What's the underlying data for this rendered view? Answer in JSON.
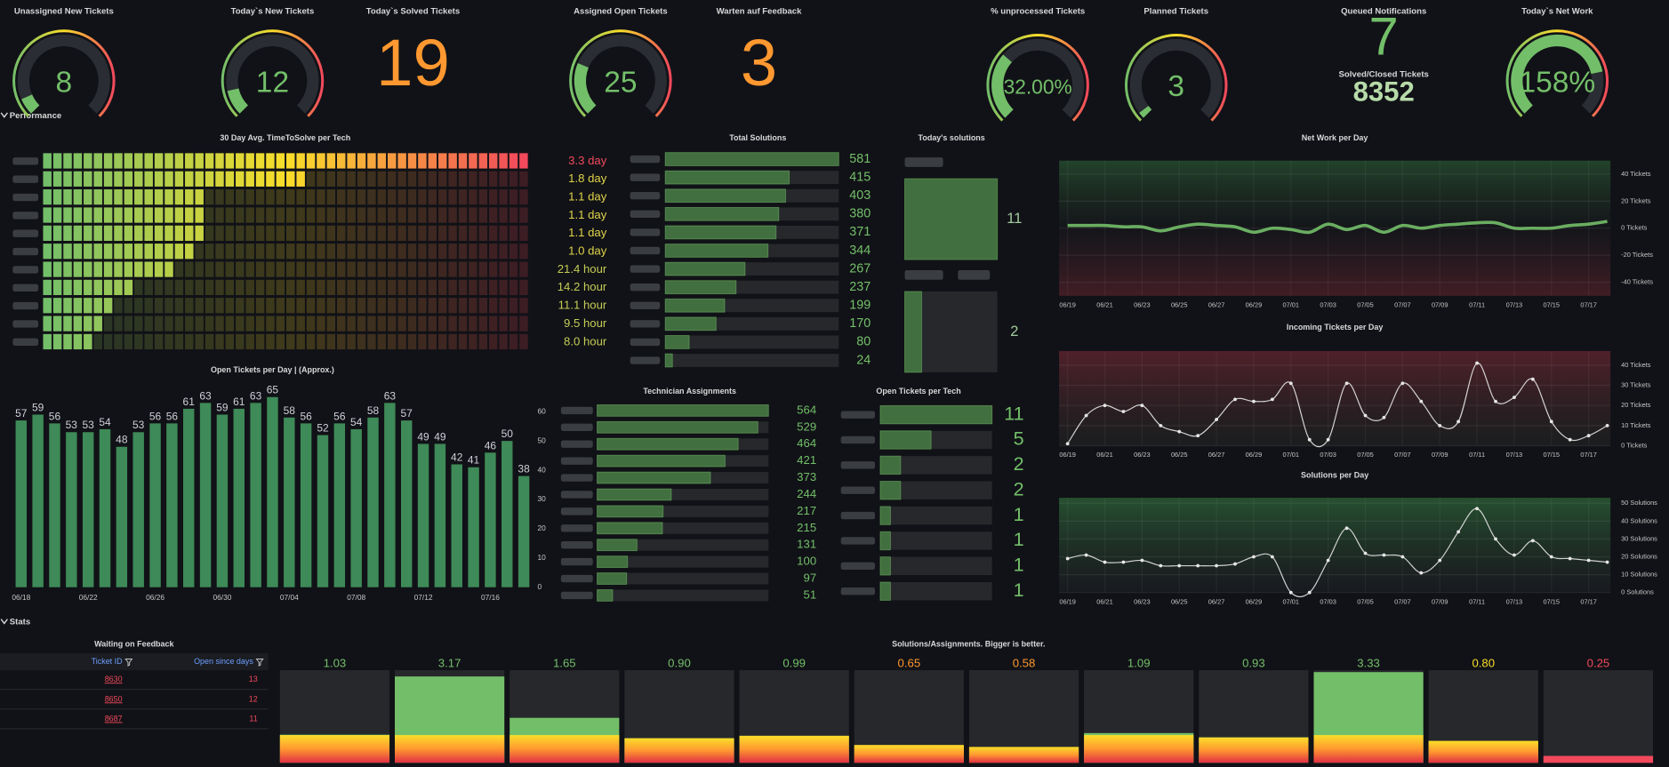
{
  "stats": [
    {
      "title": "Unassigned New Tickets",
      "kind": "gauge",
      "value": 8,
      "range": [
        0,
        100
      ]
    },
    {
      "title": "Today`s New Tickets",
      "kind": "gauge",
      "value": 12,
      "range": [
        0,
        100
      ]
    },
    {
      "title": "Today`s Solved Tickets",
      "kind": "stat",
      "value": 19,
      "color": "#ff9830"
    },
    {
      "title": "Assigned Open Tickets",
      "kind": "gauge",
      "value": 25,
      "range": [
        0,
        100
      ]
    },
    {
      "title": "Warten auf Feedback",
      "kind": "stat",
      "value": 3,
      "color": "#ff9830"
    },
    {
      "title": "% unprocessed Tickets",
      "kind": "gauge",
      "value": 32,
      "value_label": "32.00%",
      "range": [
        0,
        100
      ]
    },
    {
      "title": "Planned Tickets",
      "kind": "gauge",
      "value": 3,
      "range": [
        0,
        100
      ]
    },
    {
      "title": "Queued Notifications",
      "kind": "stat",
      "value": 7,
      "color": "#73bf69"
    },
    {
      "title": "Solved/Closed Tickets",
      "kind": "stat",
      "value": 8352,
      "color": "#b7dba9"
    },
    {
      "title": "Today`s Net Work",
      "kind": "gauge",
      "value": 158,
      "value_label": "158%",
      "range": [
        0,
        200
      ]
    }
  ],
  "sections": [
    "Performance",
    "Stats"
  ],
  "charts": [
    {
      "type": "lcd",
      "title": "30 Day Avg. TimeToSolve per Tech",
      "values": [
        79.2,
        43.2,
        26.4,
        26.4,
        26.4,
        24,
        21.4,
        14.2,
        11.1,
        9.5,
        8.0
      ],
      "value_labels": [
        "3.3 day",
        "1.8 day",
        "1.1 day",
        "1.1 day",
        "1.1 day",
        "1.0 day",
        "21.4 hour",
        "14.2 hour",
        "11.1 hour",
        "9.5 hour",
        "8.0 hour"
      ],
      "label_colors": [
        "#f2495c",
        "#e0d44a",
        "#e0d44a",
        "#e0d44a",
        "#e0d44a",
        "#e0d44a",
        "#c4cc55",
        "#c4cc55",
        "#c4cc55",
        "#c4cc55",
        "#c4cc55"
      ],
      "xlim": [
        0,
        79.2
      ]
    },
    {
      "type": "hbar",
      "title": "Total Solutions",
      "values": [
        581,
        415,
        403,
        380,
        371,
        344,
        267,
        237,
        199,
        170,
        80,
        24
      ],
      "xlim": [
        0,
        581
      ],
      "color": "#426f3f"
    },
    {
      "type": "box",
      "title": "Today's solutions",
      "values": [
        11,
        2
      ],
      "xlim": [
        0,
        11
      ],
      "color": "#426f3f"
    },
    {
      "type": "line",
      "title": "Net Work per Day",
      "x": [
        "06/19",
        "06/20",
        "06/21",
        "06/22",
        "06/23",
        "06/24",
        "06/25",
        "06/26",
        "06/27",
        "06/28",
        "06/29",
        "06/30",
        "07/01",
        "07/02",
        "07/03",
        "07/04",
        "07/05",
        "07/06",
        "07/07",
        "07/08",
        "07/09",
        "07/10",
        "07/11",
        "07/12",
        "07/13",
        "07/14",
        "07/15",
        "07/16",
        "07/17",
        "07/18"
      ],
      "values": [
        2,
        2,
        2,
        1,
        1,
        -2,
        1,
        3,
        2,
        1,
        -3,
        0,
        -1,
        -3,
        3,
        -1,
        2,
        -3,
        2,
        0,
        2,
        3,
        4,
        4,
        0,
        0,
        0,
        2,
        3,
        5
      ],
      "color": "#73bf69",
      "ylim": [
        -50,
        50
      ],
      "yticks": [
        {
          "value": 40,
          "label": "40 Tickets"
        },
        {
          "value": 20,
          "label": "20 Tickets"
        },
        {
          "value": 0,
          "label": "0 Tickets"
        },
        {
          "value": -20,
          "label": "-20 Tickets"
        },
        {
          "value": -40,
          "label": "-40 Tickets"
        }
      ],
      "xticks": [
        "06/19",
        "06/21",
        "06/23",
        "06/25",
        "06/27",
        "06/29",
        "07/01",
        "07/03",
        "07/05",
        "07/07",
        "07/09",
        "07/11",
        "07/13",
        "07/15",
        "07/17"
      ]
    },
    {
      "type": "line",
      "title": "Incoming Tickets per Day",
      "x": [
        "06/19",
        "06/20",
        "06/21",
        "06/22",
        "06/23",
        "06/24",
        "06/25",
        "06/26",
        "06/27",
        "06/28",
        "06/29",
        "06/30",
        "07/01",
        "07/02",
        "07/03",
        "07/04",
        "07/05",
        "07/06",
        "07/07",
        "07/08",
        "07/09",
        "07/10",
        "07/11",
        "07/12",
        "07/13",
        "07/14",
        "07/15",
        "07/16",
        "07/17",
        "07/18"
      ],
      "values": [
        1,
        15,
        20,
        17,
        20,
        10,
        7,
        5,
        13,
        23,
        22,
        23,
        31,
        3,
        3,
        31,
        15,
        14,
        31,
        22,
        10,
        12,
        41,
        22,
        24,
        33,
        12,
        3,
        5,
        10
      ],
      "color": "#e6e6e6",
      "ylim": [
        0,
        47
      ],
      "yticks": [
        {
          "value": 40,
          "label": "40 Tickets"
        },
        {
          "value": 30,
          "label": "30 Tickets"
        },
        {
          "value": 20,
          "label": "20 Tickets"
        },
        {
          "value": 10,
          "label": "10 Tickets"
        },
        {
          "value": 0,
          "label": "0 Tickets"
        }
      ],
      "xticks": [
        "06/19",
        "06/21",
        "06/23",
        "06/25",
        "06/27",
        "06/29",
        "07/01",
        "07/03",
        "07/05",
        "07/07",
        "07/09",
        "07/11",
        "07/13",
        "07/15",
        "07/17"
      ]
    },
    {
      "type": "line",
      "title": "Solutions per Day",
      "x": [
        "06/19",
        "06/20",
        "06/21",
        "06/22",
        "06/23",
        "06/24",
        "06/25",
        "06/26",
        "06/27",
        "06/28",
        "06/29",
        "06/30",
        "07/01",
        "07/02",
        "07/03",
        "07/04",
        "07/05",
        "07/06",
        "07/07",
        "07/08",
        "07/09",
        "07/10",
        "07/11",
        "07/12",
        "07/13",
        "07/14",
        "07/15",
        "07/16",
        "07/17",
        "07/18"
      ],
      "values": [
        19,
        21,
        17,
        17,
        18,
        15,
        15,
        15,
        15,
        16,
        20,
        20,
        0,
        0,
        18,
        36,
        22,
        21,
        20,
        11,
        18,
        34,
        47,
        30,
        21,
        29,
        20,
        19,
        18,
        17
      ],
      "color": "#e6e6e6",
      "ylim": [
        0,
        53
      ],
      "yticks": [
        {
          "value": 50,
          "label": "50 Solutions"
        },
        {
          "value": 40,
          "label": "40 Solutions"
        },
        {
          "value": 30,
          "label": "30 Solutions"
        },
        {
          "value": 20,
          "label": "20 Solutions"
        },
        {
          "value": 10,
          "label": "10 Solutions"
        },
        {
          "value": 0,
          "label": "0 Solutions"
        }
      ],
      "xticks": [
        "06/19",
        "06/21",
        "06/23",
        "06/25",
        "06/27",
        "06/29",
        "07/01",
        "07/03",
        "07/05",
        "07/07",
        "07/09",
        "07/11",
        "07/13",
        "07/15",
        "07/17"
      ]
    },
    {
      "type": "bar",
      "title": "Open Tickets per Day | (Approx.)",
      "categories": [
        "06/18",
        null,
        null,
        null,
        "06/22",
        null,
        null,
        null,
        "06/26",
        null,
        null,
        null,
        "06/30",
        null,
        null,
        null,
        "07/04",
        null,
        null,
        null,
        "07/08",
        null,
        null,
        null,
        "07/12",
        null,
        null,
        null,
        "07/16",
        null,
        null
      ],
      "values": [
        57,
        59,
        56,
        53,
        53,
        54,
        48,
        53,
        56,
        56,
        61,
        63,
        59,
        61,
        63,
        65,
        58,
        56,
        52,
        56,
        54,
        58,
        63,
        57,
        49,
        49,
        42,
        41,
        46,
        50,
        38
      ],
      "color": "#3e8a58",
      "ylim": [
        0,
        68
      ],
      "yticks": [
        0,
        10,
        20,
        30,
        40,
        50,
        60
      ]
    },
    {
      "type": "hbar",
      "title": "Technician Assignments",
      "values": [
        564,
        529,
        464,
        421,
        373,
        244,
        217,
        215,
        131,
        100,
        97,
        51
      ],
      "xlim": [
        0,
        564
      ],
      "color": "#426f3f"
    },
    {
      "type": "hbar",
      "title": "Open Tickets per Tech",
      "values": [
        11,
        5,
        2,
        2,
        1,
        1,
        1,
        1
      ],
      "xlim": [
        0,
        11
      ],
      "color": "#426f3f"
    },
    {
      "type": "table",
      "title": "Waiting on Feedback",
      "columns": [
        "Ticket ID",
        "Open since days"
      ],
      "rows": [
        [
          8630,
          13
        ],
        [
          8650,
          12
        ],
        [
          8687,
          11
        ]
      ]
    },
    {
      "type": "statbars",
      "title": "Solutions/Assignments. Bigger is better.",
      "values": [
        1.03,
        3.17,
        1.65,
        0.9,
        0.99,
        0.65,
        0.58,
        1.09,
        0.93,
        3.33,
        0.8,
        0.25
      ],
      "value_labels": [
        "1.03",
        "3.17",
        "1.65",
        "0.90",
        "0.99",
        "0.65",
        "0.58",
        "1.09",
        "0.93",
        "3.33",
        "0.80",
        "0.25"
      ],
      "colors": [
        "#73bf69",
        "#73bf69",
        "#73bf69",
        "#73bf69",
        "#73bf69",
        "#ff9830",
        "#ff9830",
        "#73bf69",
        "#73bf69",
        "#73bf69",
        "#fade2a",
        "#f2495c"
      ],
      "ylim": [
        0,
        3.4
      ]
    }
  ]
}
